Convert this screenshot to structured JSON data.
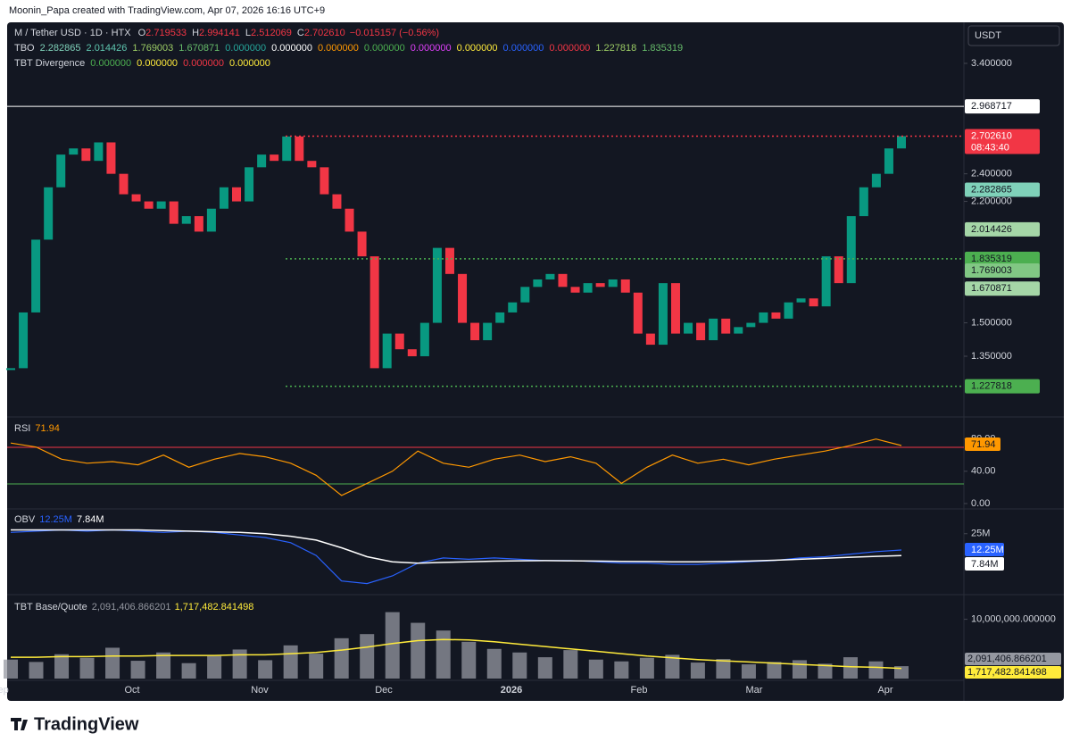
{
  "header": {
    "credit": "Moonin_Papa created with TradingView.com, Apr 07, 2026 16:16 UTC+9"
  },
  "legend": {
    "symbol": "M / Tether USD · 1D · HTX",
    "ohlc": [
      {
        "label": "O",
        "value": "2.719533"
      },
      {
        "label": "H",
        "value": "2.994141"
      },
      {
        "label": "L",
        "value": "2.512069"
      },
      {
        "label": "C",
        "value": "2.702610"
      }
    ],
    "change": "−0.015157 (−0.56%)",
    "tbo": {
      "name": "TBO",
      "values": [
        {
          "text": "2.282865",
          "color": "#7fd1b9"
        },
        {
          "text": "2.014426",
          "color": "#5fc7b0"
        },
        {
          "text": "1.769003",
          "color": "#9ccc65"
        },
        {
          "text": "1.670871",
          "color": "#66bb6a"
        },
        {
          "text": "0.000000",
          "color": "#26a69a"
        },
        {
          "text": "0.000000",
          "color": "#ffffff"
        },
        {
          "text": "0.000000",
          "color": "#ff9800"
        },
        {
          "text": "0.000000",
          "color": "#4caf50"
        },
        {
          "text": "0.000000",
          "color": "#e040fb"
        },
        {
          "text": "0.000000",
          "color": "#ffeb3b"
        },
        {
          "text": "0.000000",
          "color": "#2962ff"
        },
        {
          "text": "0.000000",
          "color": "#f23645"
        },
        {
          "text": "1.227818",
          "color": "#9ccc65"
        },
        {
          "text": "1.835319",
          "color": "#66bb6a"
        }
      ]
    },
    "divergence": {
      "name": "TBT Divergence",
      "values": [
        {
          "text": "0.000000",
          "color": "#4caf50"
        },
        {
          "text": "0.000000",
          "color": "#ffeb3b"
        },
        {
          "text": "0.000000",
          "color": "#f23645"
        },
        {
          "text": "0.000000",
          "color": "#ffeb3b"
        }
      ]
    }
  },
  "price_panel": {
    "currency": "USDT",
    "scale": "log",
    "ylim": [
      1.121,
      3.87
    ],
    "yticks": [
      {
        "value": 1.35,
        "label": "1.350000"
      },
      {
        "value": 1.5,
        "label": "1.500000"
      },
      {
        "value": 2.2,
        "label": "2.200000"
      },
      {
        "value": 2.4,
        "label": "2.400000"
      },
      {
        "value": 3.4,
        "label": "3.400000"
      }
    ],
    "up_color": "#089981",
    "down_color": "#f23645",
    "closes": [
      1.3,
      1.55,
      1.95,
      2.3,
      2.55,
      2.6,
      2.5,
      2.65,
      2.4,
      2.25,
      2.2,
      2.15,
      2.2,
      2.05,
      2.1,
      2.0,
      2.15,
      2.3,
      2.2,
      2.45,
      2.55,
      2.5,
      2.7,
      2.5,
      2.45,
      2.25,
      2.15,
      2.0,
      1.85,
      1.3,
      1.45,
      1.38,
      1.35,
      1.5,
      1.9,
      1.75,
      1.5,
      1.42,
      1.5,
      1.55,
      1.6,
      1.68,
      1.72,
      1.75,
      1.68,
      1.65,
      1.7,
      1.68,
      1.72,
      1.65,
      1.45,
      1.4,
      1.7,
      1.45,
      1.5,
      1.42,
      1.52,
      1.45,
      1.48,
      1.5,
      1.55,
      1.52,
      1.6,
      1.62,
      1.58,
      1.85,
      1.7,
      2.1,
      2.3,
      2.4,
      2.6,
      2.70261
    ],
    "levels": [
      {
        "value": 2.968717,
        "label": "2.968717",
        "color": "#ffffff",
        "text_color": "#131722",
        "style": "solid"
      },
      {
        "value": 2.70261,
        "label": "2.702610",
        "color": "#f23645",
        "text_color": "#ffffff",
        "style": "dotted",
        "countdown": "08:43:40"
      },
      {
        "value": 2.282865,
        "label": "2.282865",
        "color": "#7fd1b9",
        "text_color": "#131722",
        "style": "none"
      },
      {
        "value": 2.014426,
        "label": "2.014426",
        "color": "#a5d6a7",
        "text_color": "#131722",
        "style": "none"
      },
      {
        "value": 1.835319,
        "label": "1.835319",
        "color": "#4caf50",
        "text_color": "#131722",
        "style": "dotted"
      },
      {
        "value": 1.769003,
        "label": "1.769003",
        "color": "#81c784",
        "text_color": "#131722",
        "style": "none"
      },
      {
        "value": 1.670871,
        "label": "1.670871",
        "color": "#a5d6a7",
        "text_color": "#131722",
        "style": "none"
      },
      {
        "value": 1.227818,
        "label": "1.227818",
        "color": "#4caf50",
        "text_color": "#131722",
        "style": "dotted"
      }
    ]
  },
  "rsi_panel": {
    "name": "RSI",
    "value_label": "71.94",
    "color": "#ff9800",
    "ylim": [
      -6.7,
      104
    ],
    "yticks": [
      {
        "value": 0,
        "label": "0.00"
      },
      {
        "value": 40,
        "label": "40.00"
      },
      {
        "value": 80,
        "label": "80.00"
      }
    ],
    "values": [
      75,
      70,
      55,
      50,
      52,
      48,
      60,
      45,
      55,
      62,
      58,
      50,
      35,
      10,
      25,
      40,
      65,
      50,
      45,
      55,
      60,
      52,
      58,
      50,
      25,
      45,
      60,
      50,
      55,
      48,
      55,
      60,
      65,
      72,
      80,
      71.94
    ]
  },
  "obv_panel": {
    "name": "OBV",
    "labels": [
      "12.25M",
      "7.84M"
    ],
    "colors": [
      "#2962ff",
      "#ffffff"
    ],
    "ylim": [
      -22,
      43
    ],
    "yticks": [
      {
        "value": 25,
        "label": "25M"
      }
    ],
    "obv": [
      26,
      27,
      28,
      27,
      28,
      27,
      26,
      27,
      26,
      24,
      22,
      18,
      8,
      -12,
      -14,
      -8,
      2,
      6,
      5,
      6,
      5,
      4,
      4,
      3,
      2,
      2,
      1,
      1,
      2,
      3,
      4,
      6,
      7,
      9,
      11,
      12.25
    ],
    "ma": [
      28,
      28,
      28,
      28,
      28,
      28,
      27.5,
      27,
      26.5,
      26,
      25,
      23,
      20,
      14,
      7,
      3,
      2,
      2.5,
      3,
      3.5,
      3.8,
      3.9,
      3.8,
      3.6,
      3.4,
      3.2,
      3.0,
      3.0,
      3.2,
      3.6,
      4.2,
      5.0,
      5.8,
      6.6,
      7.3,
      7.84
    ]
  },
  "volume_panel": {
    "name": "TBT Base/Quote",
    "labels": [
      "2,091,406.866201",
      "1,717,482.841498"
    ],
    "colors": [
      "#9598a1",
      "#ffeb3b"
    ],
    "ylim": [
      0,
      14000000
    ],
    "yticks": [
      {
        "value": 10000000,
        "label": "10,000,000.000000"
      }
    ],
    "volume": [
      3200000,
      2800000,
      4100000,
      3500000,
      5200000,
      3000000,
      4400000,
      2600000,
      3800000,
      4900000,
      3100000,
      5600000,
      4200000,
      6800000,
      7500000,
      11200000,
      9400000,
      8100000,
      6200000,
      5000000,
      4400000,
      3600000,
      4800000,
      3200000,
      2900000,
      3500000,
      4000000,
      2700000,
      3300000,
      2400000,
      2800000,
      3100000,
      2500000,
      3600000,
      2900000,
      2091406.866201
    ],
    "ma": [
      3600000,
      3600000,
      3700000,
      3700000,
      3800000,
      3800000,
      3900000,
      3900000,
      3900000,
      4000000,
      4000000,
      4200000,
      4400000,
      4800000,
      5300000,
      5900000,
      6400000,
      6600000,
      6500000,
      6200000,
      5800000,
      5400000,
      5000000,
      4600000,
      4200000,
      3800000,
      3500000,
      3200000,
      3000000,
      2800000,
      2600000,
      2400000,
      2200000,
      2000000,
      1900000,
      1717482.841498
    ]
  },
  "time_axis": [
    "Sep",
    "Oct",
    "Nov",
    "Dec",
    "2026",
    "Feb",
    "Mar",
    "Apr"
  ],
  "footer": {
    "brand": "TradingView"
  }
}
